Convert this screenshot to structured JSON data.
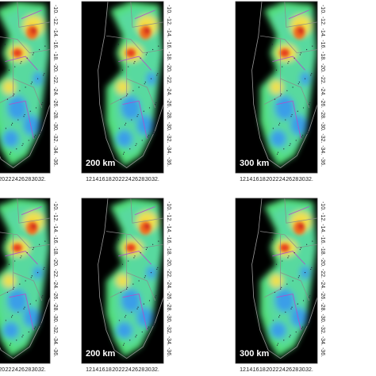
{
  "x_axis_labels": [
    "12.",
    "14.",
    "16.",
    "18.",
    "20.",
    "22.",
    "24.",
    "26.",
    "28.",
    "30.",
    "32."
  ],
  "y_axis_labels": [
    "-10.",
    "-12.",
    "-14.",
    "-16.",
    "-18.",
    "-20.",
    "-22.",
    "-24.",
    "-26.",
    "-28.",
    "-30.",
    "-32.",
    "-34.",
    "-36."
  ],
  "panel_labels": [
    "200 km",
    "300 km"
  ]
}
